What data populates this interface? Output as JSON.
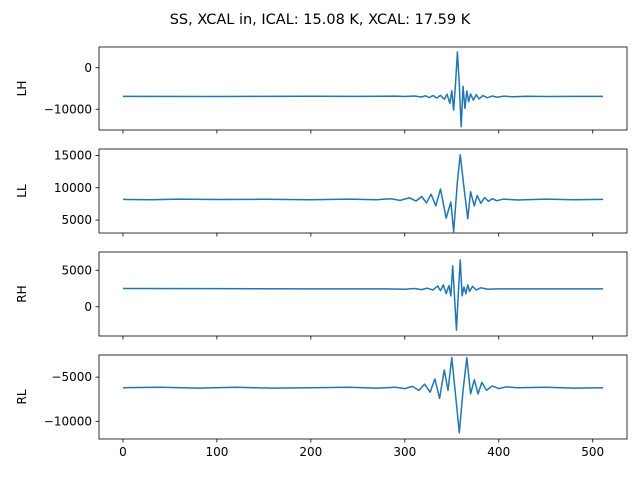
{
  "figure": {
    "title": "SS, XCAL in, ICAL: 15.08 K, XCAL: 17.59 K",
    "line_color": "#1f77b4"
  },
  "chart_data": [
    {
      "type": "line",
      "ylabel": "LH",
      "xlim": [
        -25.5,
        536.5
      ],
      "ylim": [
        -15000,
        5000
      ],
      "yticks": [
        -10000,
        0
      ],
      "xticks": [
        0,
        100,
        200,
        300,
        400,
        500
      ],
      "show_xticklabels": false,
      "series": [
        {
          "baseline": -6900,
          "points": [
            [
              0,
              -6900
            ],
            [
              100,
              -6920
            ],
            [
              200,
              -6880
            ],
            [
              250,
              -6900
            ],
            [
              290,
              -6850
            ],
            [
              300,
              -6920
            ],
            [
              310,
              -6800
            ],
            [
              318,
              -7050
            ],
            [
              322,
              -6750
            ],
            [
              326,
              -7200
            ],
            [
              330,
              -6700
            ],
            [
              334,
              -7300
            ],
            [
              338,
              -6650
            ],
            [
              342,
              -7600
            ],
            [
              345,
              -6400
            ],
            [
              348,
              -8600
            ],
            [
              350,
              -5500
            ],
            [
              352,
              -10200
            ],
            [
              354,
              -3800
            ],
            [
              356,
              3800
            ],
            [
              358,
              -4000
            ],
            [
              360,
              -14200
            ],
            [
              362,
              -4500
            ],
            [
              364,
              -9800
            ],
            [
              366,
              -5600
            ],
            [
              368,
              -8200
            ],
            [
              370,
              -6300
            ],
            [
              373,
              -7800
            ],
            [
              376,
              -6500
            ],
            [
              379,
              -7500
            ],
            [
              383,
              -6700
            ],
            [
              388,
              -7250
            ],
            [
              393,
              -6800
            ],
            [
              398,
              -7100
            ],
            [
              405,
              -6850
            ],
            [
              415,
              -7000
            ],
            [
              430,
              -6870
            ],
            [
              450,
              -6920
            ],
            [
              480,
              -6900
            ],
            [
              511,
              -6900
            ]
          ]
        }
      ]
    },
    {
      "type": "line",
      "ylabel": "LL",
      "xlim": [
        -25.5,
        536.5
      ],
      "ylim": [
        3000,
        16000
      ],
      "yticks": [
        5000,
        10000,
        15000
      ],
      "xticks": [
        0,
        100,
        200,
        300,
        400,
        500
      ],
      "show_xticklabels": false,
      "series": [
        {
          "baseline": 8200,
          "points": [
            [
              0,
              8200
            ],
            [
              30,
              8150
            ],
            [
              60,
              8250
            ],
            [
              100,
              8180
            ],
            [
              150,
              8220
            ],
            [
              200,
              8150
            ],
            [
              240,
              8250
            ],
            [
              270,
              8150
            ],
            [
              285,
              8300
            ],
            [
              295,
              8050
            ],
            [
              305,
              8450
            ],
            [
              312,
              7950
            ],
            [
              318,
              8650
            ],
            [
              323,
              7650
            ],
            [
              328,
              9000
            ],
            [
              333,
              7200
            ],
            [
              338,
              9800
            ],
            [
              344,
              5300
            ],
            [
              349,
              7800
            ],
            [
              352,
              3200
            ],
            [
              356,
              11000
            ],
            [
              359,
              15100
            ],
            [
              363,
              10000
            ],
            [
              367,
              5200
            ],
            [
              370,
              9400
            ],
            [
              374,
              7200
            ],
            [
              377,
              8800
            ],
            [
              381,
              7600
            ],
            [
              385,
              8500
            ],
            [
              389,
              7900
            ],
            [
              393,
              8300
            ],
            [
              398,
              8000
            ],
            [
              405,
              8250
            ],
            [
              420,
              8100
            ],
            [
              450,
              8250
            ],
            [
              480,
              8150
            ],
            [
              511,
              8200
            ]
          ]
        }
      ]
    },
    {
      "type": "line",
      "ylabel": "RH",
      "xlim": [
        -25.5,
        536.5
      ],
      "ylim": [
        -4000,
        7500
      ],
      "yticks": [
        0,
        5000
      ],
      "xticks": [
        0,
        100,
        200,
        300,
        400,
        500
      ],
      "show_xticklabels": false,
      "series": [
        {
          "baseline": 2500,
          "points": [
            [
              0,
              2500
            ],
            [
              100,
              2480
            ],
            [
              200,
              2450
            ],
            [
              280,
              2450
            ],
            [
              300,
              2400
            ],
            [
              310,
              2500
            ],
            [
              318,
              2350
            ],
            [
              324,
              2550
            ],
            [
              330,
              2300
            ],
            [
              335,
              2850
            ],
            [
              338,
              2200
            ],
            [
              341,
              3000
            ],
            [
              344,
              1800
            ],
            [
              347,
              2900
            ],
            [
              349,
              1500
            ],
            [
              351,
              5600
            ],
            [
              353,
              1200
            ],
            [
              355,
              -3200
            ],
            [
              357,
              2000
            ],
            [
              359,
              6400
            ],
            [
              361,
              1500
            ],
            [
              363,
              2700
            ],
            [
              365,
              1800
            ],
            [
              367,
              3000
            ],
            [
              369,
              2100
            ],
            [
              372,
              2800
            ],
            [
              376,
              2300
            ],
            [
              381,
              2600
            ],
            [
              388,
              2400
            ],
            [
              398,
              2450
            ],
            [
              420,
              2450
            ],
            [
              460,
              2450
            ],
            [
              511,
              2450
            ]
          ]
        }
      ]
    },
    {
      "type": "line",
      "ylabel": "RL",
      "xlim": [
        -25.5,
        536.5
      ],
      "ylim": [
        -12000,
        -2500
      ],
      "yticks": [
        -10000,
        -5000
      ],
      "xticks": [
        0,
        100,
        200,
        300,
        400,
        500
      ],
      "show_xticklabels": true,
      "series": [
        {
          "baseline": -6200,
          "points": [
            [
              0,
              -6200
            ],
            [
              40,
              -6150
            ],
            [
              80,
              -6250
            ],
            [
              120,
              -6150
            ],
            [
              160,
              -6250
            ],
            [
              200,
              -6200
            ],
            [
              240,
              -6150
            ],
            [
              270,
              -6250
            ],
            [
              290,
              -6150
            ],
            [
              300,
              -6300
            ],
            [
              308,
              -6050
            ],
            [
              315,
              -6500
            ],
            [
              321,
              -5800
            ],
            [
              327,
              -6700
            ],
            [
              332,
              -5200
            ],
            [
              337,
              -7400
            ],
            [
              342,
              -4200
            ],
            [
              346,
              -6500
            ],
            [
              350,
              -2800
            ],
            [
              354,
              -7000
            ],
            [
              358,
              -11300
            ],
            [
              362,
              -6500
            ],
            [
              366,
              -2800
            ],
            [
              370,
              -6900
            ],
            [
              374,
              -5300
            ],
            [
              378,
              -6900
            ],
            [
              382,
              -5600
            ],
            [
              387,
              -6500
            ],
            [
              393,
              -6000
            ],
            [
              400,
              -6300
            ],
            [
              408,
              -6100
            ],
            [
              420,
              -6200
            ],
            [
              450,
              -6150
            ],
            [
              480,
              -6250
            ],
            [
              511,
              -6200
            ]
          ]
        }
      ]
    }
  ]
}
